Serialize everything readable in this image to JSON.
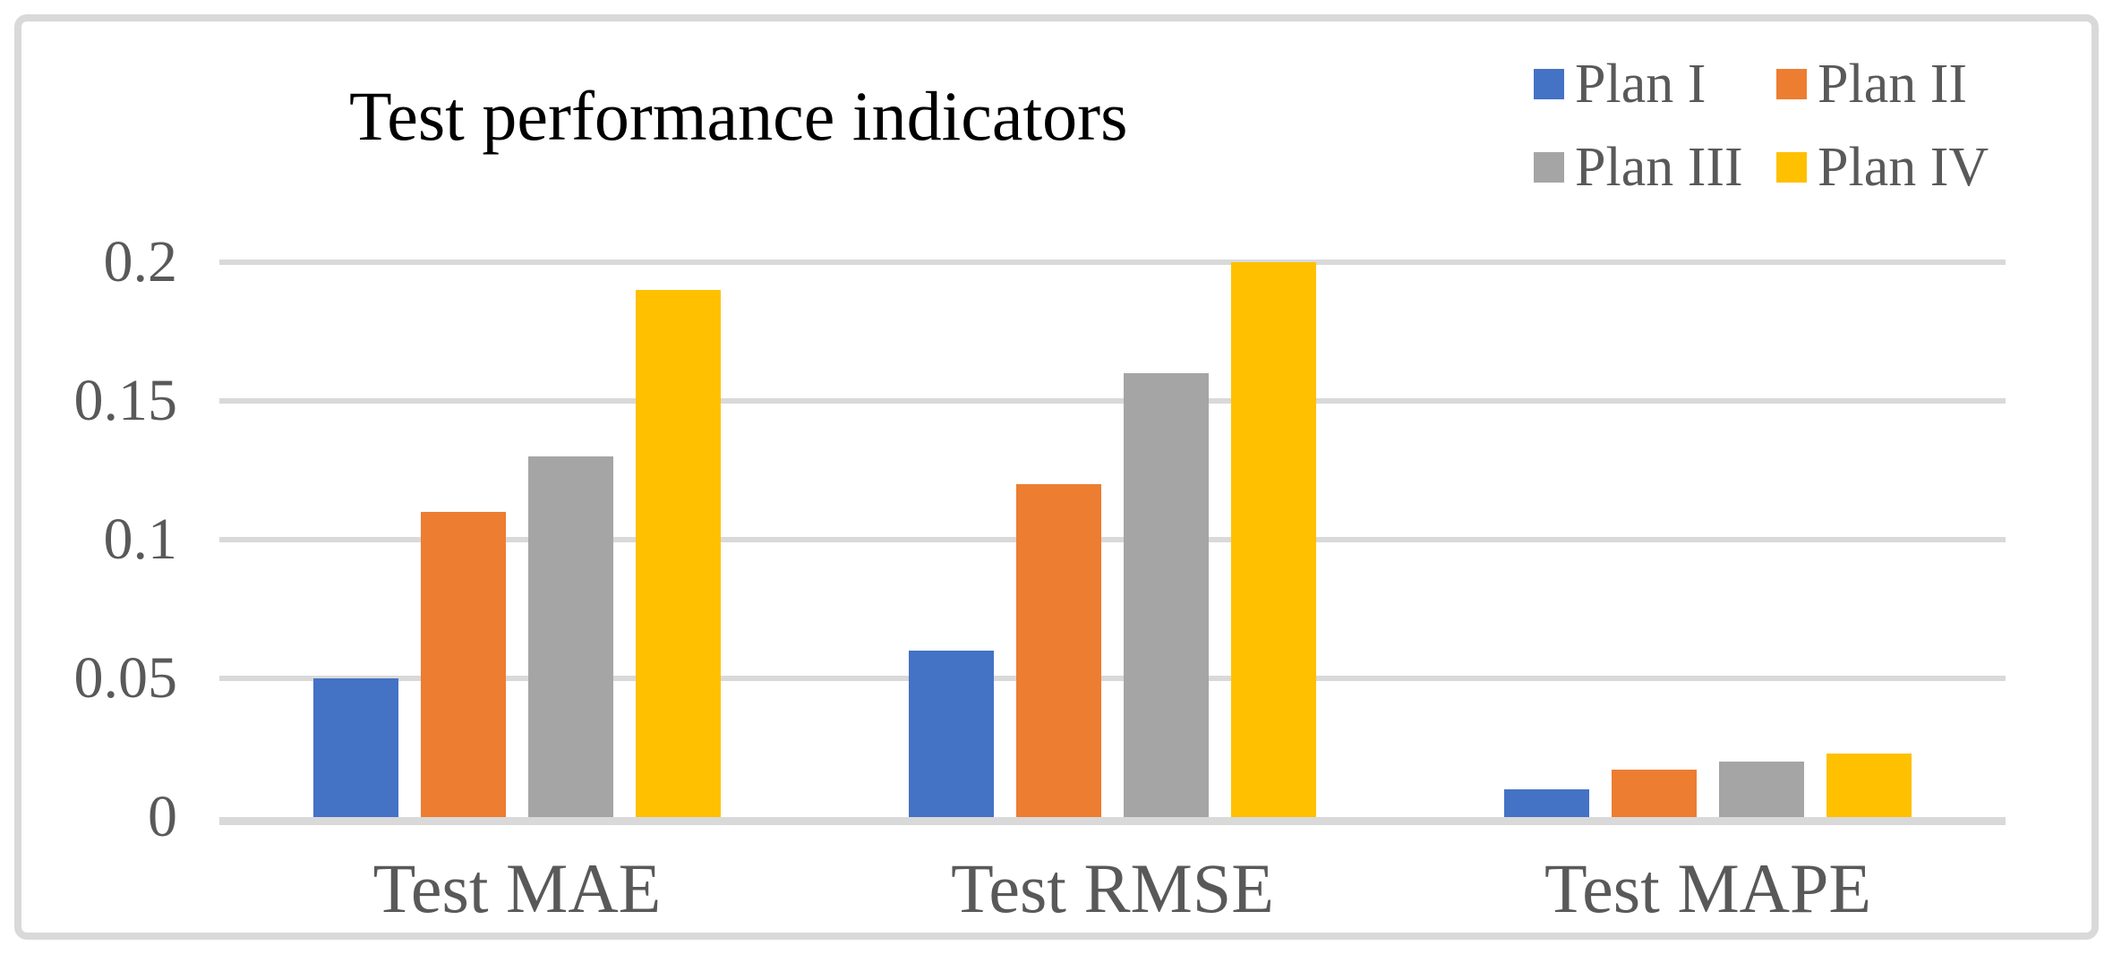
{
  "chart_data": {
    "type": "bar",
    "title": "Test performance indicators",
    "categories": [
      "Test MAE",
      "Test RMSE",
      "Test MAPE"
    ],
    "series": [
      {
        "name": "Plan I",
        "color": "#4472C4",
        "values": [
          0.05,
          0.06,
          0.01
        ]
      },
      {
        "name": "Plan II",
        "color": "#ED7D31",
        "values": [
          0.11,
          0.12,
          0.017
        ]
      },
      {
        "name": "Plan III",
        "color": "#A5A5A5",
        "values": [
          0.13,
          0.16,
          0.02
        ]
      },
      {
        "name": "Plan IV",
        "color": "#FFC000",
        "values": [
          0.19,
          0.2,
          0.023
        ]
      }
    ],
    "xlabel": "",
    "ylabel": "",
    "ylim": [
      0,
      0.2
    ],
    "yticks": [
      0,
      0.05,
      0.1,
      0.15,
      0.2
    ],
    "ytick_labels": [
      "0",
      "0.05",
      "0.1",
      "0.15",
      "0.2"
    ],
    "grid": true,
    "legend_position": "top-right",
    "legend_rows": 2
  },
  "style_colors": {
    "gridline": "#D9D9D9",
    "axis_line": "#D9D9D9",
    "frame_border": "#D9D9D9",
    "axis_text": "#595959",
    "title_text": "#000000",
    "background": "#FFFFFF"
  }
}
